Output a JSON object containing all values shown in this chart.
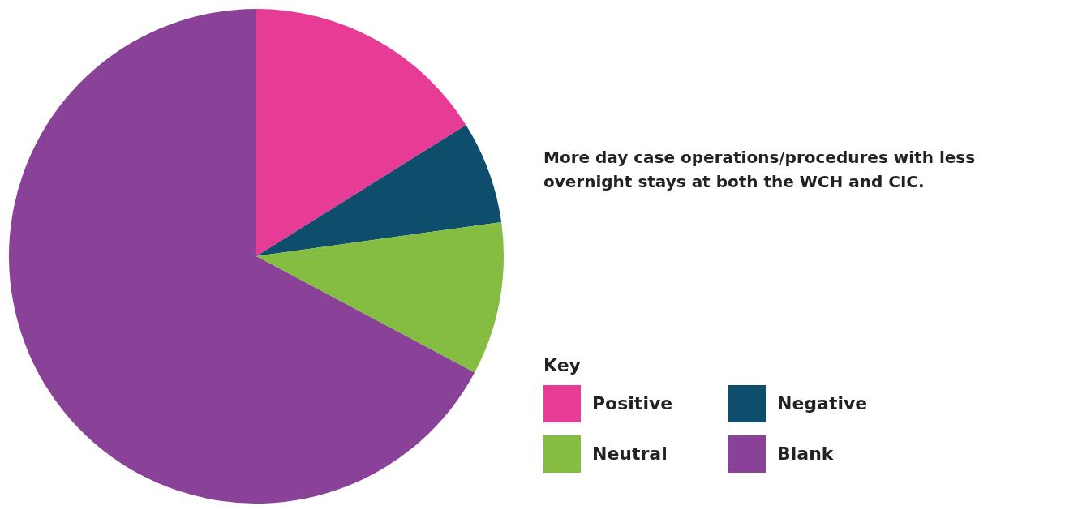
{
  "chart_data": {
    "type": "pie",
    "title": "More day case operations/procedures with less overnight stays at both the WCH and CIC.",
    "legend_title": "Key",
    "legend": "right",
    "categories": [
      "Positive",
      "Negative",
      "Neutral",
      "Blank"
    ],
    "values": [
      16.1,
      6.7,
      10.0,
      67.2
    ],
    "colors": [
      "#e63c96",
      "#0e4d6b",
      "#84bd41",
      "#8a4198"
    ]
  }
}
